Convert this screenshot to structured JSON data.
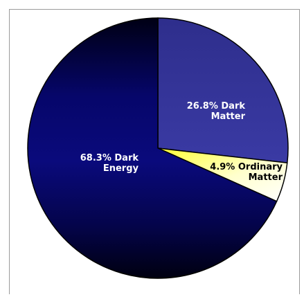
{
  "chart_data": {
    "type": "pie",
    "title": "",
    "slices": [
      {
        "label_line1": "26.8% Dark",
        "label_line2": "Matter",
        "value": 26.8,
        "label_color": "#ffffff",
        "fill": "#33339a"
      },
      {
        "label_line1": "4.9% Ordinary",
        "label_line2": "Matter",
        "value": 4.9,
        "label_color": "#000000",
        "fill": "#ffff66"
      },
      {
        "label_line1": "68.3% Dark",
        "label_line2": "Energy",
        "value": 68.3,
        "label_color": "#ffffff",
        "fill": "#0a0a6e"
      }
    ],
    "start_angle_deg": 0,
    "direction": "clockwise"
  }
}
